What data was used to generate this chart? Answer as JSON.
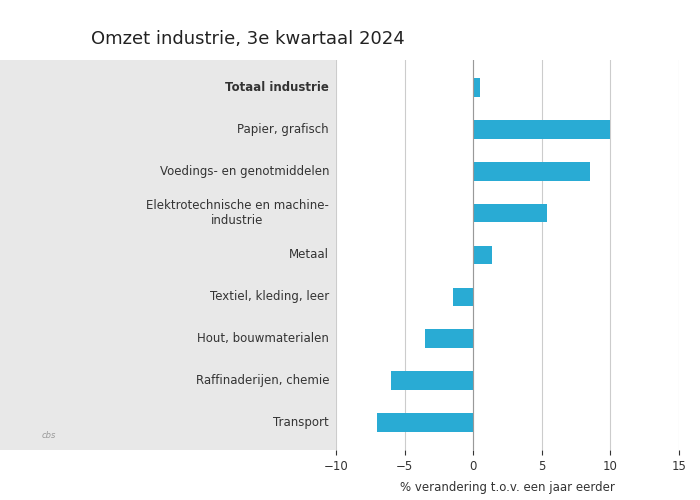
{
  "title": "Omzet industrie, 3e kwartaal 2024",
  "categories": [
    "Transport",
    "Raffinaderijen, chemie",
    "Hout, bouwmaterialen",
    "Textiel, kleding, leer",
    "Metaal",
    "Elektrotechnische en machine-\nindustrie",
    "Voedings- en genotmiddelen",
    "Papier, grafisch",
    "Totaal industrie"
  ],
  "values": [
    -7.0,
    -6.0,
    -3.5,
    -1.5,
    1.4,
    5.4,
    8.5,
    10.0,
    0.5
  ],
  "bar_color": "#29ABD4",
  "xlabel": "% verandering t.o.v. een jaar eerder",
  "xlim": [
    -10,
    15
  ],
  "xticks": [
    -10,
    -5,
    0,
    5,
    10,
    15
  ],
  "panel_bg_color": "#E8E8E8",
  "plot_bg_color": "#FFFFFF",
  "title_fontsize": 13,
  "label_fontsize": 8.5,
  "tick_fontsize": 8.5,
  "bold_category_index": 8,
  "bar_height": 0.45
}
